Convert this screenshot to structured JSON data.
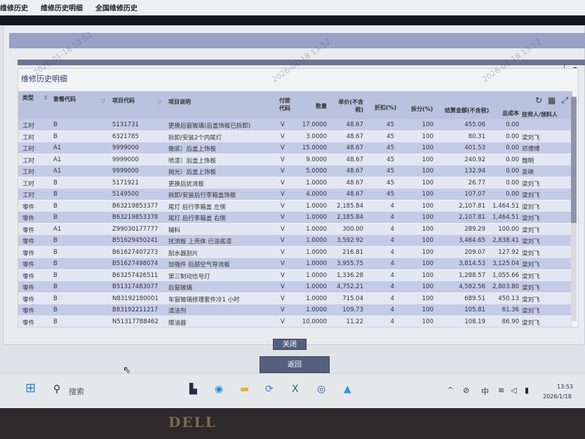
{
  "menu": [
    "维修历史",
    "维修历史明细",
    "全国维修历史"
  ],
  "watermark": "2026-01-18 13:52",
  "panel": {
    "title": "维修历史明细"
  },
  "columns": {
    "type": "类型",
    "package": "套餐代码",
    "code": "项目代码",
    "desc": "项目说明",
    "pay": "付款代码",
    "qty": "数量",
    "price": "单价(不含税)",
    "discount": "折扣(%)",
    "split": "拆分(%)",
    "amount": "结算金额(不含税)",
    "cost": "总成本",
    "tech": "技师人/领料人"
  },
  "rows": [
    [
      "工时",
      "B",
      "5131731",
      "更换后窗玻璃(后盖饰板已拆卸)",
      "V",
      "17.0000",
      "48.67",
      "45",
      "100",
      "455.06",
      "0.00",
      ""
    ],
    [
      "工时",
      "B",
      "6321785",
      "拆卸/安装2个内尾灯",
      "V",
      "3.0000",
      "48.67",
      "45",
      "100",
      "80.31",
      "0.00",
      "梁刘飞"
    ],
    [
      "工时",
      "A1",
      "9999000",
      "做底）后盖上饰板",
      "V",
      "15.0000",
      "48.67",
      "45",
      "100",
      "401.53",
      "0.00",
      "邓博博"
    ],
    [
      "工时",
      "A1",
      "9999000",
      "喷漆）后盖上饰板",
      "V",
      "9.0000",
      "48.67",
      "45",
      "100",
      "240.92",
      "0.00",
      "魏明"
    ],
    [
      "工时",
      "A1",
      "9999000",
      "抛光）后盖上饰板",
      "V",
      "5.0000",
      "48.67",
      "45",
      "100",
      "132.94",
      "0.00",
      "吴晓"
    ],
    [
      "工时",
      "B",
      "5171921",
      "更换后扰流板",
      "V",
      "1.0000",
      "48.67",
      "45",
      "100",
      "26.77",
      "0.00",
      "梁刘飞"
    ],
    [
      "工时",
      "B",
      "5149500",
      "拆卸/安装后行李箱盖饰板",
      "V",
      "4.0000",
      "48.67",
      "45",
      "100",
      "107.07",
      "0.00",
      "梁刘飞"
    ],
    [
      "零件",
      "B",
      "B63219853377",
      "尾灯 后行李箱盖 左侧",
      "V",
      "1.0000",
      "2,185.84",
      "4",
      "100",
      "2,107.81",
      "1,464.51",
      "梁刘飞"
    ],
    [
      "零件",
      "B",
      "B63219853378",
      "尾灯 后行李箱盖 右侧",
      "V",
      "1.0000",
      "2,185.84",
      "4",
      "100",
      "2,107.81",
      "1,464.51",
      "梁刘飞"
    ],
    [
      "零件",
      "A1",
      "Z99030177777",
      "辅料",
      "V",
      "1.0000",
      "300.00",
      "4",
      "100",
      "289.29",
      "100.00",
      "梁刘飞"
    ],
    [
      "零件",
      "B",
      "B51629450241",
      "扰流板 上壳体 已涂底漆",
      "V",
      "1.0000",
      "3,592.92",
      "4",
      "100",
      "3,464.65",
      "2,838.41",
      "梁刘飞"
    ],
    [
      "零件",
      "B",
      "B61627407273",
      "刮水器刮片",
      "V",
      "1.0000",
      "216.81",
      "4",
      "100",
      "209.07",
      "127.92",
      "梁刘飞"
    ],
    [
      "零件",
      "B",
      "B51627498074",
      "加强件 后部空气导流板",
      "V",
      "1.0000",
      "3,955.75",
      "4",
      "100",
      "3,814.53",
      "3,125.04",
      "梁刘飞"
    ],
    [
      "零件",
      "B",
      "B63257426511",
      "第三制动信号灯",
      "V",
      "1.0000",
      "1,336.28",
      "4",
      "100",
      "1,288.57",
      "1,055.66",
      "梁刘飞"
    ],
    [
      "零件",
      "B",
      "B51317483077",
      "后窗玻璃",
      "V",
      "1.0000",
      "4,752.21",
      "4",
      "100",
      "4,582.56",
      "2,803.80",
      "梁刘飞"
    ],
    [
      "零件",
      "B",
      "N83192180001",
      "车窗玻璃修理套件冷1 小时",
      "V",
      "1.0000",
      "715.04",
      "4",
      "100",
      "689.51",
      "450.13",
      "梁刘飞"
    ],
    [
      "零件",
      "B",
      "B83192211217",
      "清洁剂",
      "V",
      "1.0000",
      "109.73",
      "4",
      "100",
      "105.81",
      "61.36",
      "梁刘飞"
    ],
    [
      "零件",
      "B",
      "N51317788462",
      "擦油器",
      "V",
      "10.0000",
      "11.22",
      "4",
      "100",
      "108.19",
      "86.90",
      "梁刘飞"
    ]
  ],
  "buttons": {
    "close": "关闭",
    "back": "返回"
  },
  "taskbar": {
    "search": "搜索",
    "ime": "中",
    "time": "13:53",
    "date": "2026/1/18"
  },
  "brand": "DELL"
}
